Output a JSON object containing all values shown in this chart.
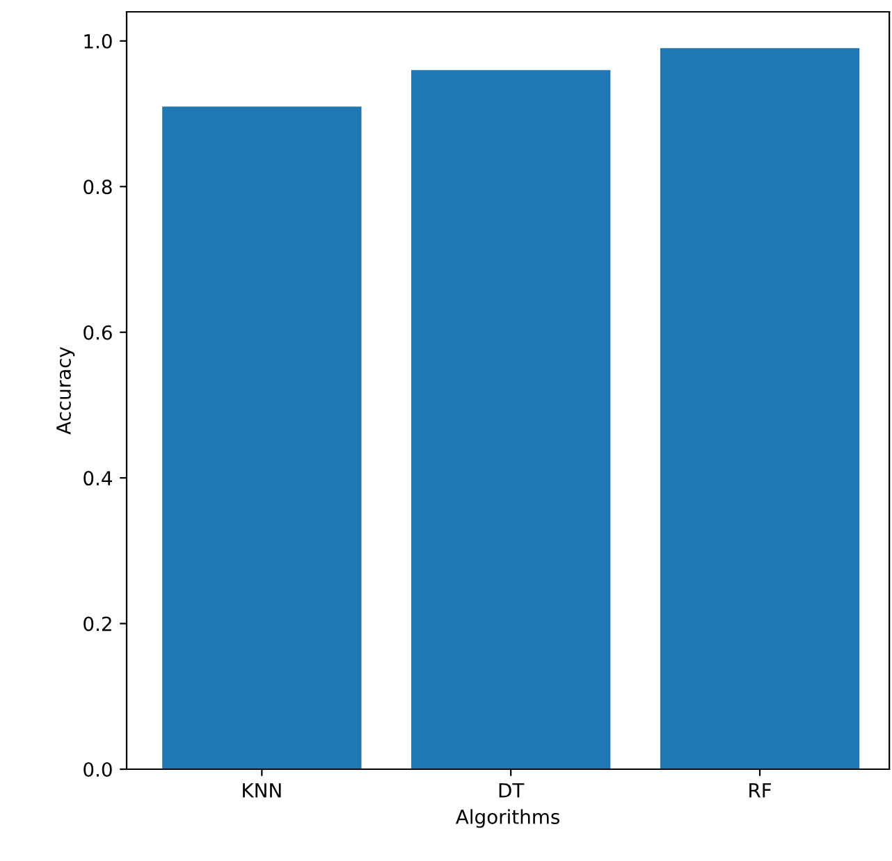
{
  "chart_data": {
    "type": "bar",
    "xlabel": "Algorithms",
    "ylabel": "Accuracy",
    "categories": [
      "KNN",
      "DT",
      "RF"
    ],
    "values": [
      0.91,
      0.96,
      0.99
    ],
    "color": "#1f77b4",
    "ylim": [
      0,
      1.04
    ],
    "yticks": [
      {
        "value": 0,
        "label": "0.0"
      },
      0.2,
      0.4,
      0.6,
      0.8,
      {
        "value": 1,
        "label": "1.0"
      }
    ],
    "grid": false
  }
}
